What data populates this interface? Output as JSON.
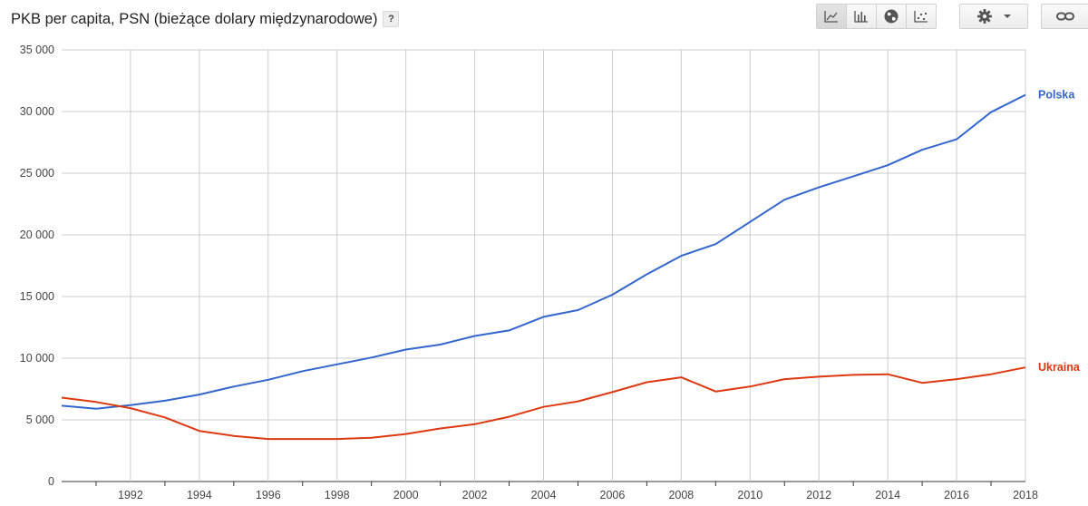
{
  "header": {
    "title": "PKB per capita, PSN (bieżące dolary międzynarodowe)",
    "help_label": "?"
  },
  "toolbar": {
    "buttons": [
      {
        "icon": "line-chart-icon",
        "active": true
      },
      {
        "icon": "bar-chart-icon",
        "active": false
      },
      {
        "icon": "globe-icon",
        "active": false
      },
      {
        "icon": "scatter-chart-icon",
        "active": false
      }
    ],
    "settings_icon": "gear-icon",
    "dropdown_icon": "caret-down-icon",
    "link_icon": "link-icon"
  },
  "chart_data": {
    "type": "line",
    "title": "PKB per capita, PSN (bieżące dolary międzynarodowe)",
    "xlabel": "",
    "ylabel": "",
    "xlim": [
      1990,
      2018
    ],
    "ylim": [
      0,
      35000
    ],
    "x_ticks": [
      1992,
      1994,
      1996,
      1998,
      2000,
      2002,
      2004,
      2006,
      2008,
      2010,
      2012,
      2014,
      2016,
      2018
    ],
    "y_ticks": [
      0,
      5000,
      10000,
      15000,
      20000,
      25000,
      30000,
      35000
    ],
    "y_tick_labels": [
      "0",
      "5 000",
      "10 000",
      "15 000",
      "20 000",
      "25 000",
      "30 000",
      "35 000"
    ],
    "grid": true,
    "legend": "end-of-line labels",
    "x": [
      1990,
      1991,
      1992,
      1993,
      1994,
      1995,
      1996,
      1997,
      1998,
      1999,
      2000,
      2001,
      2002,
      2003,
      2004,
      2005,
      2006,
      2007,
      2008,
      2009,
      2010,
      2011,
      2012,
      2013,
      2014,
      2015,
      2016,
      2017,
      2018
    ],
    "series": [
      {
        "name": "Polska",
        "color": "#3366cc",
        "values": [
          6150,
          5900,
          6200,
          6550,
          7050,
          7700,
          8250,
          8950,
          9500,
          10050,
          10700,
          11100,
          11800,
          12250,
          13350,
          13900,
          15150,
          16800,
          18300,
          19250,
          21050,
          22850,
          23850,
          24750,
          25650,
          26900,
          27750,
          29950,
          31350
        ]
      },
      {
        "name": "Ukraina",
        "color": "#dc3912",
        "values": [
          6800,
          6450,
          5950,
          5200,
          4100,
          3700,
          3450,
          3450,
          3450,
          3550,
          3850,
          4300,
          4650,
          5250,
          6050,
          6500,
          7250,
          8050,
          8450,
          7300,
          7700,
          8300,
          8500,
          8650,
          8700,
          8000,
          8300,
          8700,
          9250
        ]
      }
    ]
  }
}
